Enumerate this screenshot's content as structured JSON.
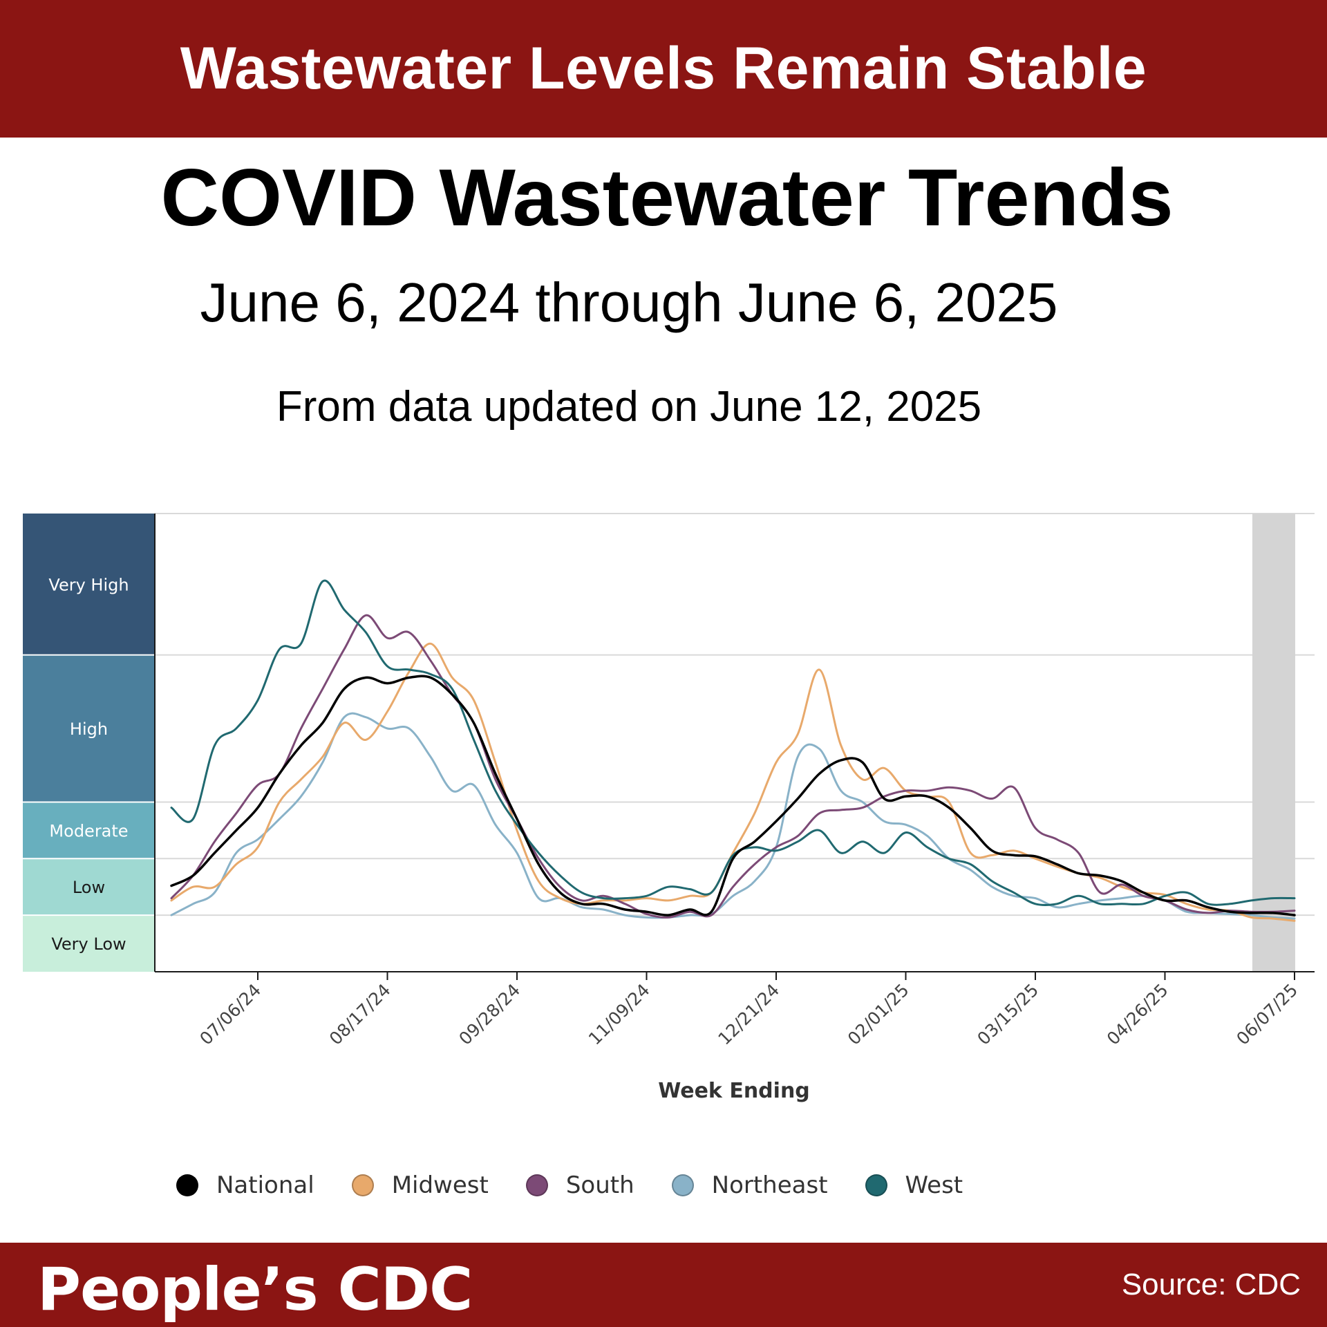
{
  "banner": {
    "title": "Wastewater Levels Remain Stable"
  },
  "header": {
    "title": "COVID Wastewater Trends",
    "date_range": "June 6, 2024 through June 6, 2025",
    "update_note": "From data updated on June 12, 2025"
  },
  "footer": {
    "brand": "People’s CDC",
    "source": "Source: CDC"
  },
  "chart_data": {
    "type": "line",
    "xlabel": "Week Ending",
    "ylabel": "",
    "x_ticks": [
      "07/06/24",
      "08/17/24",
      "09/28/24",
      "11/09/24",
      "12/21/24",
      "02/01/25",
      "03/15/25",
      "04/26/25",
      "06/07/25"
    ],
    "x_range": [
      "06/08/24",
      "06/07/25"
    ],
    "levels": [
      {
        "label": "Very High",
        "color": "#355576",
        "range": [
          4.25,
          5.5
        ]
      },
      {
        "label": "High",
        "color": "#4b7f9c",
        "range": [
          2.95,
          4.25
        ]
      },
      {
        "label": "Moderate",
        "color": "#68afbe",
        "range": [
          2.45,
          2.95
        ]
      },
      {
        "label": "Low",
        "color": "#9fd9d2",
        "range": [
          1.95,
          2.45
        ]
      },
      {
        "label": "Very Low",
        "color": "#c8eedb",
        "range": [
          1.45,
          1.95
        ]
      }
    ],
    "level_thresholds": [
      1.95,
      2.45,
      2.95,
      4.25
    ],
    "y_range": [
      1.45,
      5.5
    ],
    "provisional_shading": true,
    "grid": true,
    "legend_position": "bottom",
    "x": [
      "06/08/24",
      "06/15/24",
      "06/22/24",
      "06/29/24",
      "07/06/24",
      "07/13/24",
      "07/20/24",
      "07/27/24",
      "08/03/24",
      "08/10/24",
      "08/17/24",
      "08/24/24",
      "08/31/24",
      "09/07/24",
      "09/14/24",
      "09/21/24",
      "09/28/24",
      "10/05/24",
      "10/12/24",
      "10/19/24",
      "10/26/24",
      "11/02/24",
      "11/09/24",
      "11/16/24",
      "11/23/24",
      "11/30/24",
      "12/07/24",
      "12/14/24",
      "12/21/24",
      "12/28/24",
      "01/04/25",
      "01/11/25",
      "01/18/25",
      "01/25/25",
      "02/01/25",
      "02/08/25",
      "02/15/25",
      "02/22/25",
      "03/01/25",
      "03/08/25",
      "03/15/25",
      "03/22/25",
      "03/29/25",
      "04/05/25",
      "04/12/25",
      "04/19/25",
      "04/26/25",
      "05/03/25",
      "05/10/25",
      "05/17/25",
      "05/24/25",
      "05/31/25",
      "06/07/25"
    ],
    "series": [
      {
        "name": "National",
        "color": "#000000",
        "values": [
          2.21,
          2.3,
          2.5,
          2.7,
          2.9,
          3.2,
          3.45,
          3.65,
          3.95,
          4.05,
          4.0,
          4.05,
          4.05,
          3.9,
          3.65,
          3.2,
          2.8,
          2.4,
          2.15,
          2.05,
          2.05,
          2.0,
          1.98,
          1.95,
          2.0,
          1.98,
          2.45,
          2.6,
          2.78,
          2.98,
          3.2,
          3.32,
          3.3,
          2.98,
          3.0,
          3.0,
          2.9,
          2.72,
          2.52,
          2.48,
          2.47,
          2.4,
          2.32,
          2.3,
          2.25,
          2.15,
          2.08,
          2.08,
          2.02,
          1.98,
          1.97,
          1.97,
          1.95
        ]
      },
      {
        "name": "Midwest",
        "color": "#e8a96b",
        "values": [
          2.08,
          2.2,
          2.2,
          2.4,
          2.55,
          2.95,
          3.15,
          3.35,
          3.65,
          3.5,
          3.75,
          4.1,
          4.35,
          4.05,
          3.85,
          3.3,
          2.7,
          2.25,
          2.1,
          2.05,
          2.08,
          2.08,
          2.1,
          2.08,
          2.12,
          2.15,
          2.5,
          2.85,
          3.3,
          3.55,
          4.12,
          3.45,
          3.15,
          3.25,
          3.05,
          3.0,
          2.95,
          2.5,
          2.48,
          2.52,
          2.45,
          2.38,
          2.32,
          2.28,
          2.2,
          2.15,
          2.13,
          2.05,
          2.0,
          1.99,
          1.93,
          1.92,
          1.9
        ]
      },
      {
        "name": "South",
        "color": "#7c4a76",
        "values": [
          2.1,
          2.3,
          2.6,
          2.85,
          3.1,
          3.2,
          3.6,
          3.95,
          4.3,
          4.6,
          4.4,
          4.45,
          4.2,
          3.9,
          3.65,
          3.15,
          2.8,
          2.45,
          2.2,
          2.08,
          2.12,
          2.05,
          1.96,
          1.93,
          1.98,
          1.95,
          2.2,
          2.4,
          2.55,
          2.65,
          2.85,
          2.88,
          2.9,
          3.0,
          3.05,
          3.05,
          3.08,
          3.05,
          2.98,
          3.08,
          2.72,
          2.62,
          2.5,
          2.15,
          2.22,
          2.12,
          2.08,
          2.0,
          1.97,
          1.99,
          1.98,
          1.98,
          1.99
        ]
      },
      {
        "name": "Northeast",
        "color": "#89b2c8",
        "values": [
          1.95,
          2.05,
          2.15,
          2.5,
          2.62,
          2.8,
          3.0,
          3.3,
          3.7,
          3.7,
          3.6,
          3.6,
          3.35,
          3.05,
          3.1,
          2.75,
          2.5,
          2.1,
          2.1,
          2.02,
          2.0,
          1.95,
          1.93,
          1.93,
          1.95,
          1.96,
          2.12,
          2.25,
          2.55,
          3.35,
          3.42,
          3.05,
          2.95,
          2.78,
          2.75,
          2.65,
          2.45,
          2.35,
          2.2,
          2.12,
          2.1,
          2.02,
          2.05,
          2.08,
          2.1,
          2.12,
          2.08,
          1.98,
          1.97,
          1.96,
          1.95,
          1.93,
          1.92
        ]
      },
      {
        "name": "West",
        "color": "#206970",
        "values": [
          2.9,
          2.8,
          3.45,
          3.6,
          3.85,
          4.3,
          4.35,
          4.9,
          4.65,
          4.45,
          4.15,
          4.12,
          4.08,
          3.95,
          3.5,
          3.05,
          2.75,
          2.5,
          2.3,
          2.15,
          2.1,
          2.1,
          2.12,
          2.2,
          2.18,
          2.15,
          2.48,
          2.55,
          2.52,
          2.6,
          2.7,
          2.5,
          2.6,
          2.5,
          2.68,
          2.55,
          2.45,
          2.4,
          2.25,
          2.15,
          2.05,
          2.05,
          2.12,
          2.05,
          2.05,
          2.05,
          2.12,
          2.15,
          2.05,
          2.05,
          2.08,
          2.1,
          2.1
        ]
      }
    ]
  }
}
